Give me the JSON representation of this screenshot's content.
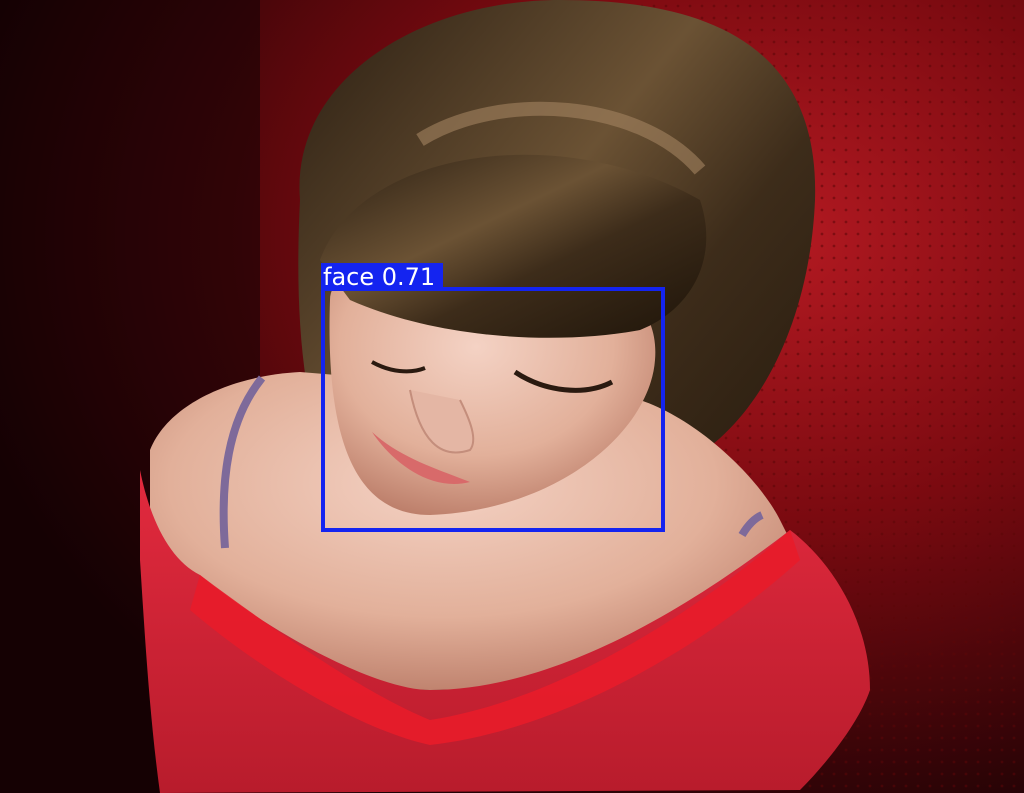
{
  "detections": [
    {
      "label": "face 0.71",
      "color": "#1424f0"
    }
  ],
  "scene": {
    "background_color": "#8a0a12",
    "shirt_color": "#d8263a",
    "hair_color": "#4a3520",
    "skin_color": "#e7b8a4"
  }
}
